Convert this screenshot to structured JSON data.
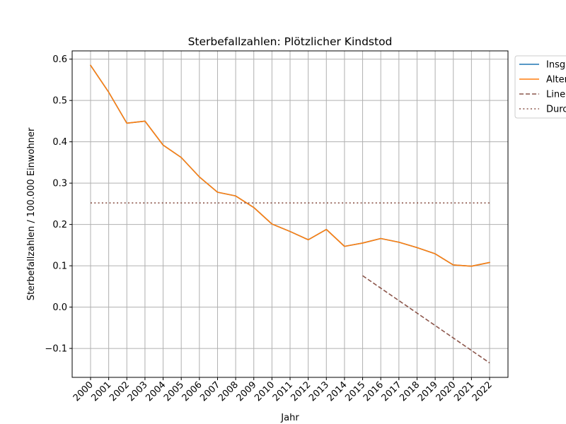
{
  "chart_data": {
    "type": "line",
    "title": "Sterbefallzahlen: Plötzlicher Kindstod",
    "xlabel": "Jahr",
    "ylabel": "Sterbefallzahlen / 100.000 Einwohner",
    "ylim": [
      -0.17,
      0.62
    ],
    "yticks": [
      -0.1,
      0.0,
      0.1,
      0.2,
      0.3,
      0.4,
      0.5,
      0.6
    ],
    "ytick_labels": [
      "−0.1",
      "0.0",
      "0.1",
      "0.2",
      "0.3",
      "0.4",
      "0.5",
      "0.6"
    ],
    "x": [
      "2000",
      "2001",
      "2002",
      "2003",
      "2004",
      "2005",
      "2006",
      "2007",
      "2008",
      "2009",
      "2010",
      "2011",
      "2012",
      "2013",
      "2014",
      "2015",
      "2016",
      "2017",
      "2018",
      "2019",
      "2020",
      "2021",
      "2022"
    ],
    "grid": true,
    "legend_position": "upper right outside",
    "series": [
      {
        "name": "Insg",
        "color": "#1f77b4",
        "style": "solid",
        "x": [
          "2000",
          "2001",
          "2002",
          "2003",
          "2004",
          "2005",
          "2006",
          "2007",
          "2008",
          "2009",
          "2010",
          "2011",
          "2012",
          "2013",
          "2014",
          "2015",
          "2016",
          "2017",
          "2018",
          "2019",
          "2020",
          "2021",
          "2022"
        ],
        "values": [
          0.585,
          0.52,
          0.445,
          0.45,
          0.392,
          0.362,
          0.315,
          0.278,
          0.269,
          0.241,
          0.201,
          0.183,
          0.163,
          0.188,
          0.147,
          0.155,
          0.166,
          0.157,
          0.144,
          0.129,
          0.102,
          0.099,
          0.108
        ]
      },
      {
        "name": "Alter",
        "color": "#ff7f0e",
        "style": "solid",
        "x": [
          "2000",
          "2001",
          "2002",
          "2003",
          "2004",
          "2005",
          "2006",
          "2007",
          "2008",
          "2009",
          "2010",
          "2011",
          "2012",
          "2013",
          "2014",
          "2015",
          "2016",
          "2017",
          "2018",
          "2019",
          "2020",
          "2021",
          "2022"
        ],
        "values": [
          0.585,
          0.52,
          0.445,
          0.45,
          0.392,
          0.362,
          0.315,
          0.278,
          0.269,
          0.241,
          0.201,
          0.183,
          0.163,
          0.188,
          0.147,
          0.155,
          0.166,
          0.157,
          0.144,
          0.129,
          0.102,
          0.099,
          0.108
        ]
      },
      {
        "name": "Line",
        "color": "#8c564b",
        "style": "dashed",
        "x": [
          "2015",
          "2022"
        ],
        "values": [
          0.076,
          -0.135
        ]
      },
      {
        "name": "Durc",
        "color": "#8c564b",
        "style": "dotted",
        "x": [
          "2000",
          "2022"
        ],
        "values": [
          0.252,
          0.252
        ]
      }
    ]
  }
}
